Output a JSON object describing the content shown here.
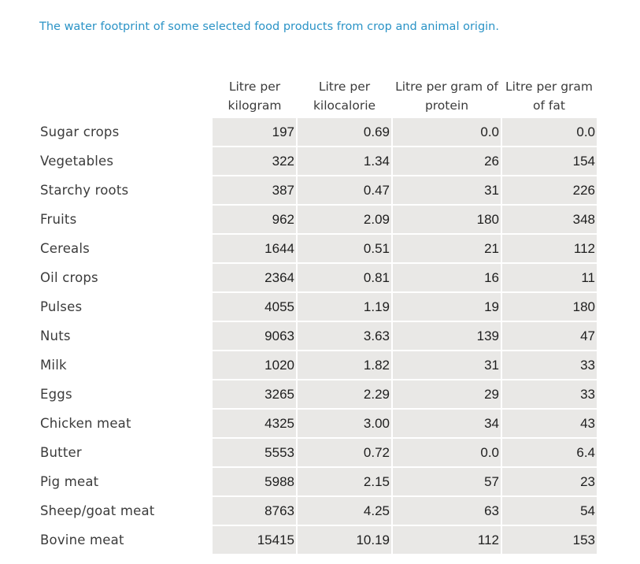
{
  "caption": "The water footprint of some selected food products from crop and animal origin.",
  "columns": [
    "Litre per kilogram",
    "Litre per kilocalorie",
    "Litre per gram of protein",
    "Litre per gram of fat"
  ],
  "rows": [
    {
      "product": "Sugar crops",
      "values": [
        "197",
        "0.69",
        "0.0",
        "0.0"
      ]
    },
    {
      "product": "Vegetables",
      "values": [
        "322",
        "1.34",
        "26",
        "154"
      ]
    },
    {
      "product": "Starchy roots",
      "values": [
        "387",
        "0.47",
        "31",
        "226"
      ]
    },
    {
      "product": "Fruits",
      "values": [
        "962",
        "2.09",
        "180",
        "348"
      ]
    },
    {
      "product": "Cereals",
      "values": [
        "1644",
        "0.51",
        "21",
        "112"
      ]
    },
    {
      "product": "Oil crops",
      "values": [
        "2364",
        "0.81",
        "16",
        "11"
      ]
    },
    {
      "product": "Pulses",
      "values": [
        "4055",
        "1.19",
        "19",
        "180"
      ]
    },
    {
      "product": "Nuts",
      "values": [
        "9063",
        "3.63",
        "139",
        "47"
      ]
    },
    {
      "product": "Milk",
      "values": [
        "1020",
        "1.82",
        "31",
        "33"
      ]
    },
    {
      "product": "Eggs",
      "values": [
        "3265",
        "2.29",
        "29",
        "33"
      ]
    },
    {
      "product": "Chicken meat",
      "values": [
        "4325",
        "3.00",
        "34",
        "43"
      ]
    },
    {
      "product": "Butter",
      "values": [
        "5553",
        "0.72",
        "0.0",
        "6.4"
      ]
    },
    {
      "product": "Pig meat",
      "values": [
        "5988",
        "2.15",
        "57",
        "23"
      ]
    },
    {
      "product": "Sheep/goat meat",
      "values": [
        "8763",
        "4.25",
        "63",
        "54"
      ]
    },
    {
      "product": "Bovine meat",
      "values": [
        "15415",
        "10.19",
        "112",
        "153"
      ]
    }
  ]
}
